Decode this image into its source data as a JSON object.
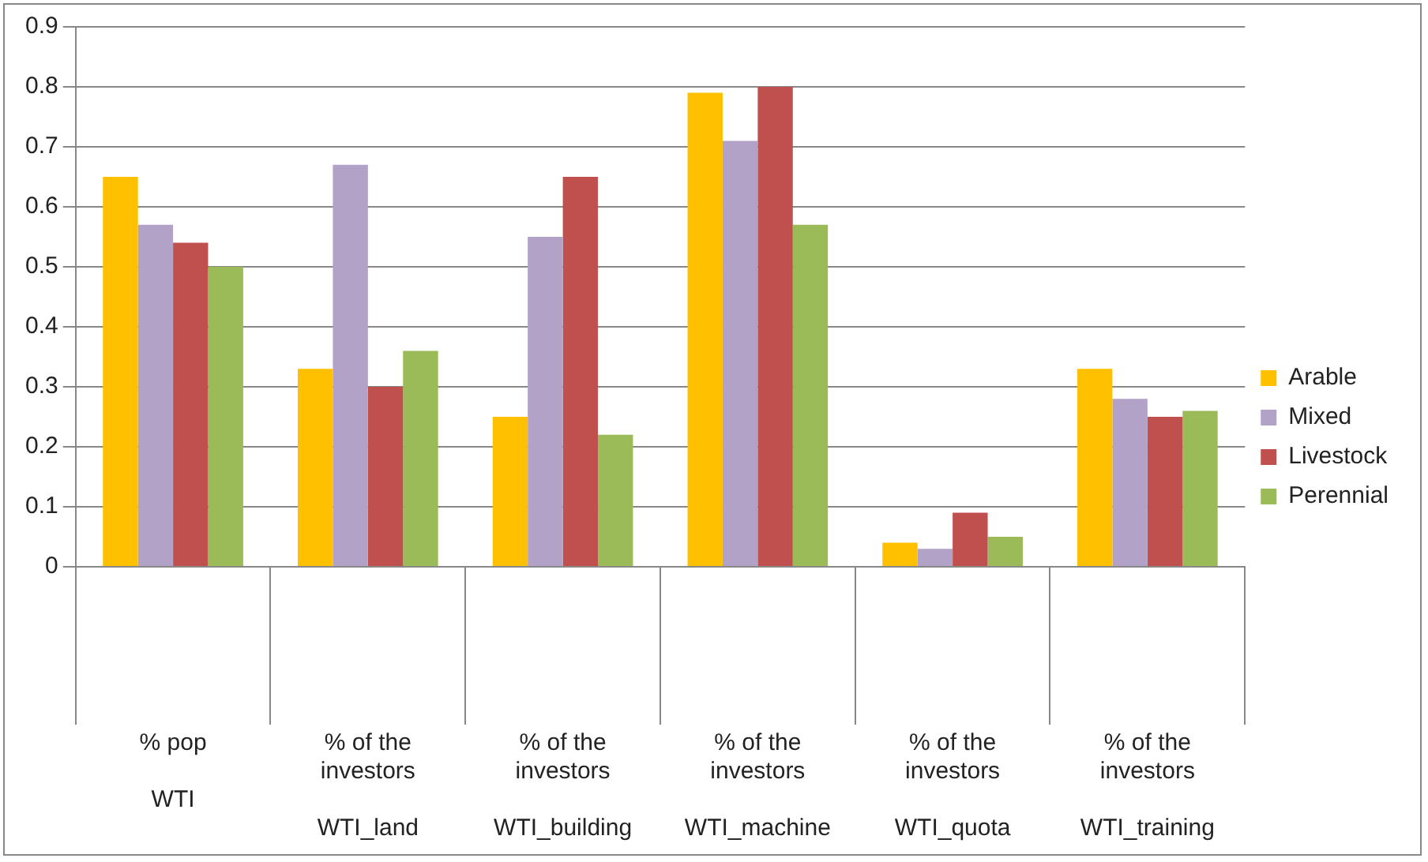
{
  "chart_data": {
    "type": "bar",
    "categories": [
      "% pop\nWTI",
      "% of the investors\nWTI_land",
      "% of the investors\nWTI_building",
      "% of the investors\nWTI_machine",
      "% of the investors\nWTI_quota",
      "% of the investors\nWTI_training"
    ],
    "series": [
      {
        "name": "Arable",
        "color": "#ffc000",
        "values": [
          0.65,
          0.33,
          0.25,
          0.79,
          0.04,
          0.33
        ]
      },
      {
        "name": "Mixed",
        "color": "#b3a2c7",
        "values": [
          0.57,
          0.67,
          0.55,
          0.71,
          0.03,
          0.28
        ]
      },
      {
        "name": "Livestock",
        "color": "#c0504d",
        "values": [
          0.54,
          0.3,
          0.65,
          0.8,
          0.09,
          0.25
        ]
      },
      {
        "name": "Perennial",
        "color": "#9bbb59",
        "values": [
          0.5,
          0.36,
          0.22,
          0.57,
          0.05,
          0.26
        ]
      }
    ],
    "ylim": [
      0,
      0.9
    ],
    "yticks": [
      0,
      0.1,
      0.2,
      0.3,
      0.4,
      0.5,
      0.6,
      0.7,
      0.8,
      0.9
    ],
    "grid": "y",
    "legend": "right"
  }
}
